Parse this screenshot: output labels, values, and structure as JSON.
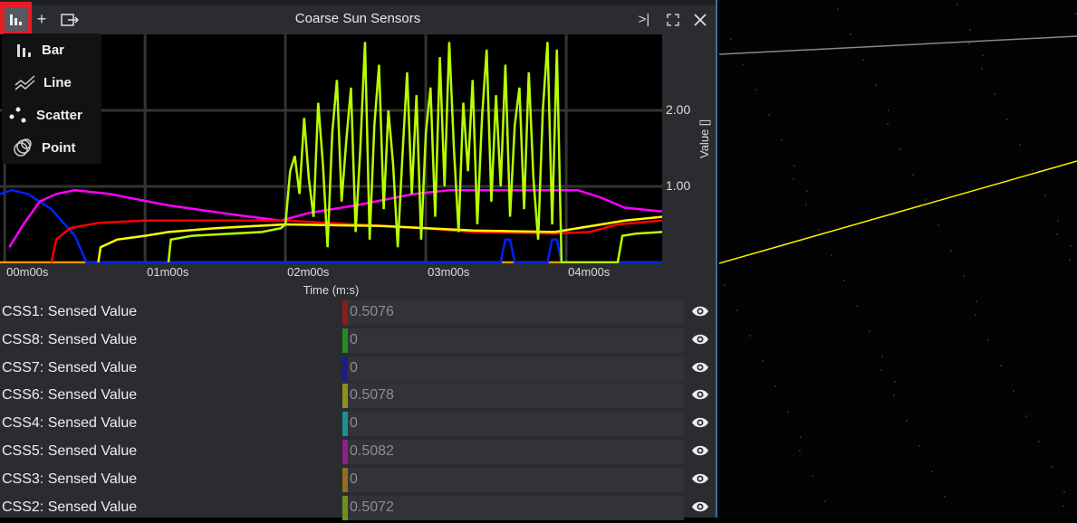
{
  "window": {
    "title": "Coarse Sun Sensors",
    "buttons": [
      "chart-type",
      "add",
      "export",
      "collapse",
      "fullscreen",
      "close"
    ]
  },
  "chart_menu": {
    "items": [
      {
        "label": "Bar",
        "icon": "bar-chart-icon"
      },
      {
        "label": "Line",
        "icon": "line-chart-icon"
      },
      {
        "label": "Scatter",
        "icon": "scatter-icon"
      },
      {
        "label": "Point",
        "icon": "point-icon"
      }
    ]
  },
  "chart_data": {
    "type": "line",
    "xlabel": "Time (m:s)",
    "ylabel": "Value []",
    "xticks": [
      {
        "v": 0,
        "label": "00m00s"
      },
      {
        "v": 60,
        "label": "01m00s"
      },
      {
        "v": 120,
        "label": "02m00s"
      },
      {
        "v": 180,
        "label": "03m00s"
      },
      {
        "v": 240,
        "label": "04m00s"
      }
    ],
    "yticks": [
      {
        "v": 1,
        "label": "1.00"
      },
      {
        "v": 2,
        "label": "2.00"
      }
    ],
    "xlim": [
      -2,
      281
    ],
    "ylim": [
      0,
      3
    ],
    "grid": true,
    "series": [
      {
        "color": "#ff9900",
        "points": [
          [
            -2,
            0
          ],
          [
            281,
            0
          ]
        ]
      },
      {
        "color": "#0022ff",
        "points": [
          [
            -2,
            0.9
          ],
          [
            3,
            0.95
          ],
          [
            10,
            0.9
          ],
          [
            20,
            0.7
          ],
          [
            30,
            0.35
          ],
          [
            35,
            0
          ],
          [
            212,
            0
          ],
          [
            214,
            0.3
          ],
          [
            216,
            0.3
          ],
          [
            218,
            0
          ],
          [
            232,
            0
          ],
          [
            234,
            0.3
          ],
          [
            236,
            0.3
          ],
          [
            238,
            0
          ],
          [
            281,
            0
          ]
        ]
      },
      {
        "color": "#ff00ff",
        "points": [
          [
            2,
            0.2
          ],
          [
            8,
            0.5
          ],
          [
            15,
            0.8
          ],
          [
            22,
            0.9
          ],
          [
            30,
            0.95
          ],
          [
            45,
            0.9
          ],
          [
            70,
            0.75
          ],
          [
            100,
            0.62
          ],
          [
            118,
            0.55
          ],
          [
            130,
            0.65
          ],
          [
            150,
            0.75
          ],
          [
            175,
            0.9
          ],
          [
            190,
            0.95
          ],
          [
            245,
            0.95
          ],
          [
            255,
            0.85
          ],
          [
            265,
            0.72
          ],
          [
            281,
            0.67
          ]
        ]
      },
      {
        "color": "#ff0000",
        "points": [
          [
            20,
            0
          ],
          [
            22,
            0.3
          ],
          [
            28,
            0.45
          ],
          [
            40,
            0.52
          ],
          [
            60,
            0.55
          ],
          [
            120,
            0.55
          ],
          [
            150,
            0.5
          ],
          [
            180,
            0.45
          ],
          [
            200,
            0.4
          ],
          [
            235,
            0.38
          ],
          [
            250,
            0.4
          ],
          [
            262,
            0.5
          ],
          [
            281,
            0.55
          ]
        ]
      },
      {
        "color": "#ffff00",
        "points": [
          [
            40,
            0
          ],
          [
            41,
            0.2
          ],
          [
            48,
            0.3
          ],
          [
            60,
            0.35
          ],
          [
            70,
            0.4
          ],
          [
            90,
            0.45
          ],
          [
            120,
            0.5
          ],
          [
            160,
            0.48
          ],
          [
            200,
            0.42
          ],
          [
            235,
            0.4
          ],
          [
            255,
            0.5
          ],
          [
            265,
            0.55
          ],
          [
            281,
            0.6
          ]
        ]
      },
      {
        "color": "#b8ff00",
        "points": [
          [
            70,
            0
          ],
          [
            71,
            0.3
          ],
          [
            80,
            0.35
          ],
          [
            110,
            0.4
          ],
          [
            118,
            0.45
          ],
          [
            120,
            0.5
          ],
          [
            122,
            1.2
          ],
          [
            124,
            1.4
          ],
          [
            126,
            0.9
          ],
          [
            128,
            1.9
          ],
          [
            130,
            1.1
          ],
          [
            132,
            0.6
          ],
          [
            134,
            2.1
          ],
          [
            136,
            1.3
          ],
          [
            138,
            0.2
          ],
          [
            140,
            1.7
          ],
          [
            142,
            2.4
          ],
          [
            144,
            0.8
          ],
          [
            146,
            1.6
          ],
          [
            148,
            2.3
          ],
          [
            150,
            0.4
          ],
          [
            152,
            1.5
          ],
          [
            154,
            2.9
          ],
          [
            156,
            0.3
          ],
          [
            158,
            1.8
          ],
          [
            160,
            2.6
          ],
          [
            162,
            0.7
          ],
          [
            164,
            2.0
          ],
          [
            166,
            1.3
          ],
          [
            168,
            0.2
          ],
          [
            170,
            1.4
          ],
          [
            172,
            2.5
          ],
          [
            174,
            0.9
          ],
          [
            176,
            2.2
          ],
          [
            178,
            0.3
          ],
          [
            180,
            1.7
          ],
          [
            182,
            2.3
          ],
          [
            184,
            0.6
          ],
          [
            186,
            2.7
          ],
          [
            188,
            1.0
          ],
          [
            190,
            2.9
          ],
          [
            192,
            1.5
          ],
          [
            194,
            0.4
          ],
          [
            196,
            2.1
          ],
          [
            198,
            1.2
          ],
          [
            200,
            2.4
          ],
          [
            202,
            0.5
          ],
          [
            204,
            1.9
          ],
          [
            206,
            2.8
          ],
          [
            208,
            0.8
          ],
          [
            210,
            2.2
          ],
          [
            212,
            1.0
          ],
          [
            214,
            2.6
          ],
          [
            216,
            0.6
          ],
          [
            218,
            1.8
          ],
          [
            220,
            2.3
          ],
          [
            222,
            0.7
          ],
          [
            224,
            2.5
          ],
          [
            226,
            1.1
          ],
          [
            228,
            0.3
          ],
          [
            230,
            2.0
          ],
          [
            232,
            2.9
          ],
          [
            234,
            0.5
          ],
          [
            236,
            2.8
          ],
          [
            238,
            0
          ],
          [
            262,
            0
          ],
          [
            264,
            0.35
          ],
          [
            270,
            0.38
          ],
          [
            281,
            0.4
          ]
        ]
      }
    ]
  },
  "legend": [
    {
      "label": "CSS1: Sensed Value",
      "value": "0.5076",
      "color": "#8b1c1c"
    },
    {
      "label": "CSS8: Sensed Value",
      "value": "0",
      "color": "#1e8f1e"
    },
    {
      "label": "CSS7: Sensed Value",
      "value": "0",
      "color": "#1c1c8f"
    },
    {
      "label": "CSS6: Sensed Value",
      "value": "0.5078",
      "color": "#8f8f1e"
    },
    {
      "label": "CSS4: Sensed Value",
      "value": "0",
      "color": "#1e8f8f"
    },
    {
      "label": "CSS5: Sensed Value",
      "value": "0.5082",
      "color": "#8f1e8f"
    },
    {
      "label": "CSS3: Sensed Value",
      "value": "0",
      "color": "#8f6e1e"
    },
    {
      "label": "CSS2: Sensed Value",
      "value": "0.5072",
      "color": "#6e8f1e"
    }
  ]
}
